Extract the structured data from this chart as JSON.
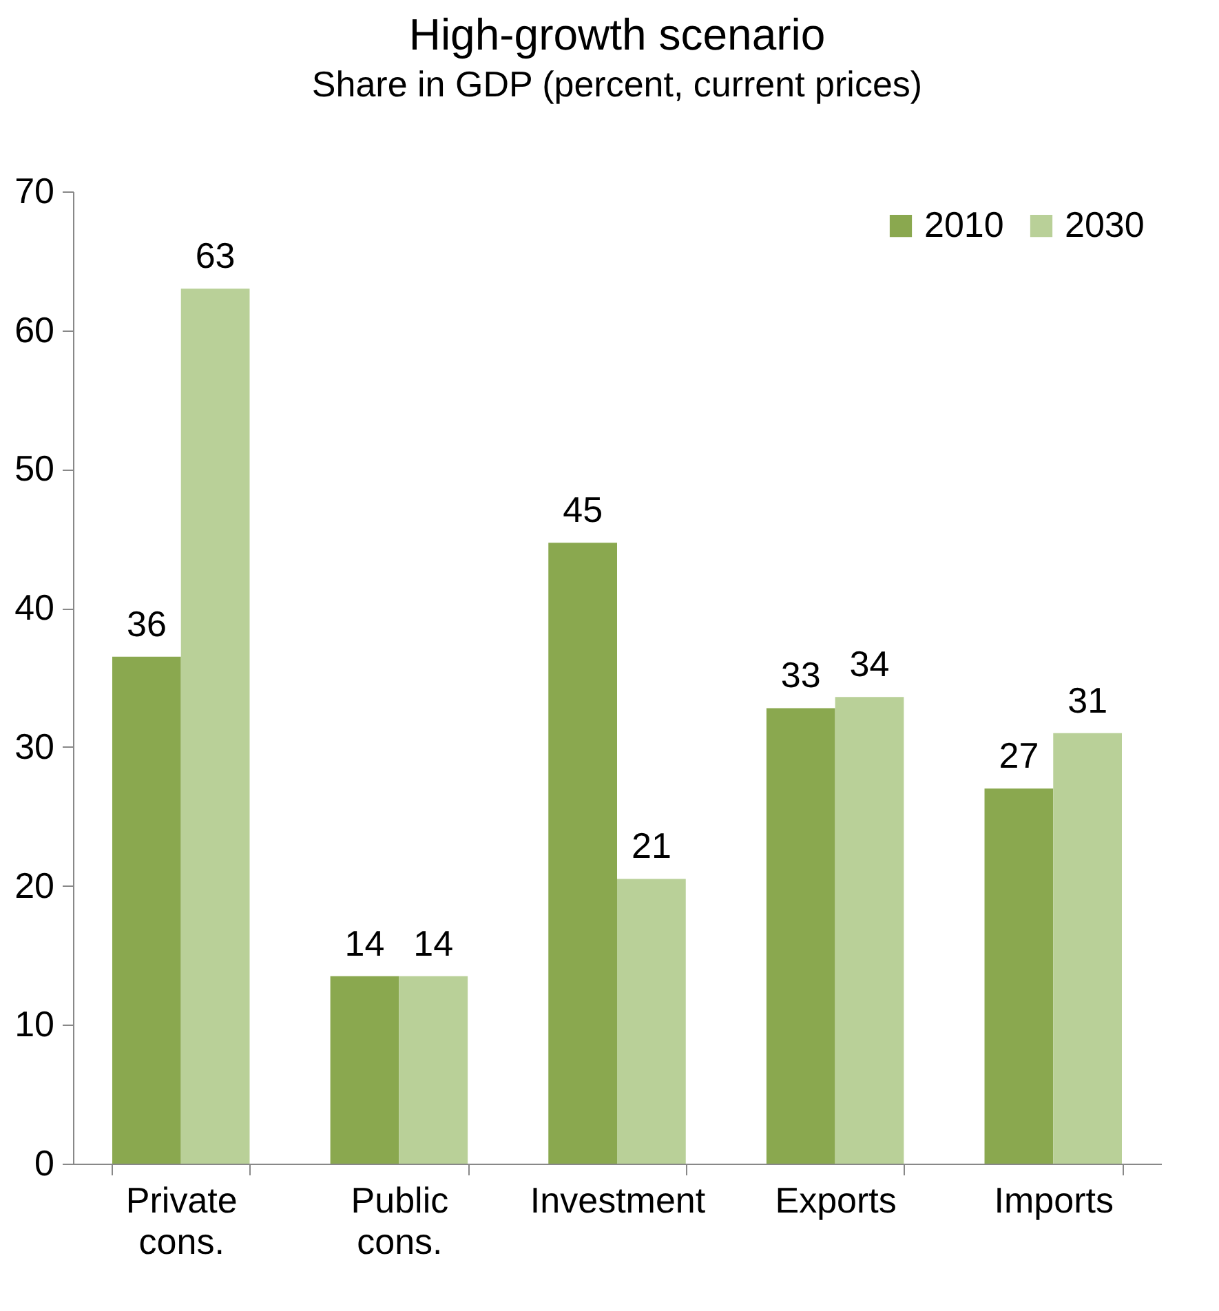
{
  "chart_data": {
    "type": "bar",
    "title": "High-growth scenario",
    "subtitle": "Share in GDP (percent, current prices)",
    "categories": [
      "Private cons.",
      "Public cons.",
      "Investment",
      "Exports",
      "Imports"
    ],
    "series": [
      {
        "name": "2010",
        "color": "#8aa84f",
        "values": [
          36.5,
          13.5,
          44.7,
          32.8,
          27
        ],
        "value_labels": [
          "36",
          "14",
          "45",
          "33",
          "27"
        ]
      },
      {
        "name": "2030",
        "color": "#b9d098",
        "values": [
          63,
          13.5,
          20.5,
          33.6,
          31
        ],
        "value_labels": [
          "63",
          "14",
          "21",
          "34",
          "31"
        ]
      }
    ],
    "ylim": [
      0,
      70
    ],
    "yticks": [
      0,
      10,
      20,
      30,
      40,
      50,
      60,
      70
    ],
    "grid": false,
    "legend": "top right"
  }
}
